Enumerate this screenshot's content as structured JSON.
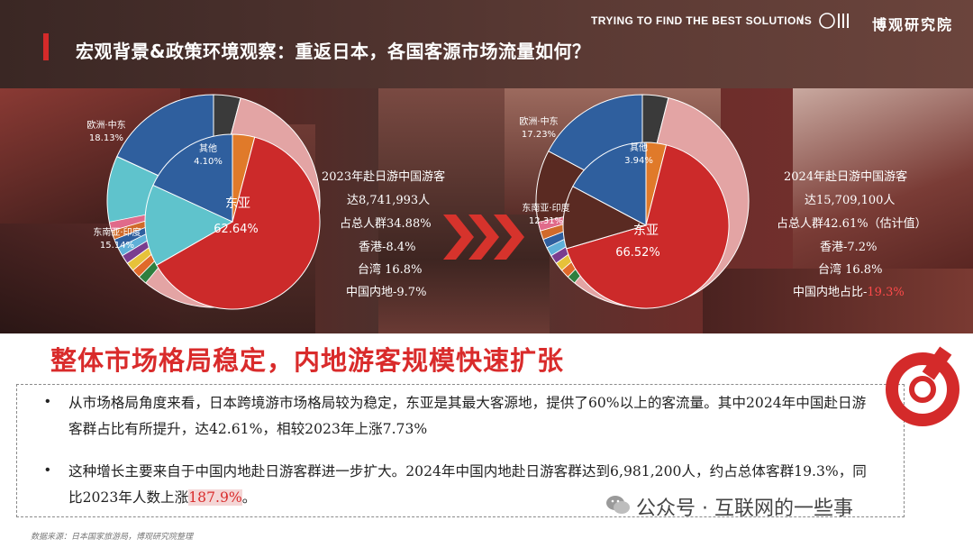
{
  "header": {
    "title": "宏观背景&政策环境观察：重返日本，各国客源市场流量如何？",
    "tagline": "TRYING TO FIND THE BEST SOLUTIONS",
    "slash": "/",
    "brand": "博观研究院"
  },
  "colors": {
    "accent_red": "#d42a2a",
    "east_asia": "#cc2a2a",
    "east_asia_outer": "#e3a4a4",
    "others": "#3a3a3a",
    "europe_mideast": "#2f5f9e",
    "southeast_south_asia_2023": "#5fc3cc",
    "southeast_south_asia_2024": "#5a2a22"
  },
  "chart_data": [
    {
      "type": "pie",
      "title": "2023",
      "slices": [
        {
          "label": "东亚",
          "value_label": "62.64%",
          "value": 62.64
        },
        {
          "label": "东南亚·印度",
          "value_label": "15.14%",
          "value": 15.14
        },
        {
          "label": "欧洲·中东",
          "value_label": "18.13%",
          "value": 18.13
        },
        {
          "label": "其他",
          "value_label": "4.10%",
          "value": 4.1
        }
      ]
    },
    {
      "type": "pie",
      "title": "2024",
      "slices": [
        {
          "label": "东亚",
          "value_label": "66.52%",
          "value": 66.52
        },
        {
          "label": "东南亚·印度",
          "value_label": "12.31%",
          "value": 12.31
        },
        {
          "label": "欧洲·中东",
          "value_label": "17.23%",
          "value": 17.23
        },
        {
          "label": "其他",
          "value_label": "3.94%",
          "value": 3.94
        }
      ]
    }
  ],
  "stats_2023": {
    "lines": [
      "2023年赴日游中国游客",
      "达8,741,993人",
      "占总人群34.88%",
      "香港-8.4%",
      "台湾 16.8%",
      "中国内地-9.7%"
    ]
  },
  "stats_2024": {
    "lines": [
      "2024年赴日游中国游客",
      "达15,709,100人",
      "占总人群42.61%（估计值）",
      "香港-7.2%",
      "台湾 16.8%"
    ],
    "mainland_prefix": "中国内地占比-",
    "mainland_value": "19.3%"
  },
  "bottom": {
    "title": "整体市场格局稳定，内地游客规模快速扩张",
    "bullet": "•",
    "p1": "从市场格局角度来看，日本跨境游市场格局较为稳定，东亚是其最大客源地，提供了60%以上的客流量。其中2024年中国赴日游客群占比有所提升，达42.61%，相较2023年上涨7.73%",
    "p2_prefix": "这种增长主要来自于中国内地赴日游客群进一步扩大。2024年中国内地赴日游客群达到6,981,200人，约占总体客群19.3%，同比2023年人数上涨",
    "p2_highlight": "187.9%",
    "p2_suffix": "。",
    "source": "数据来源：日本国家旅游局，博观研究院整理",
    "watermark": "公众号 · 互联网的一些事"
  }
}
